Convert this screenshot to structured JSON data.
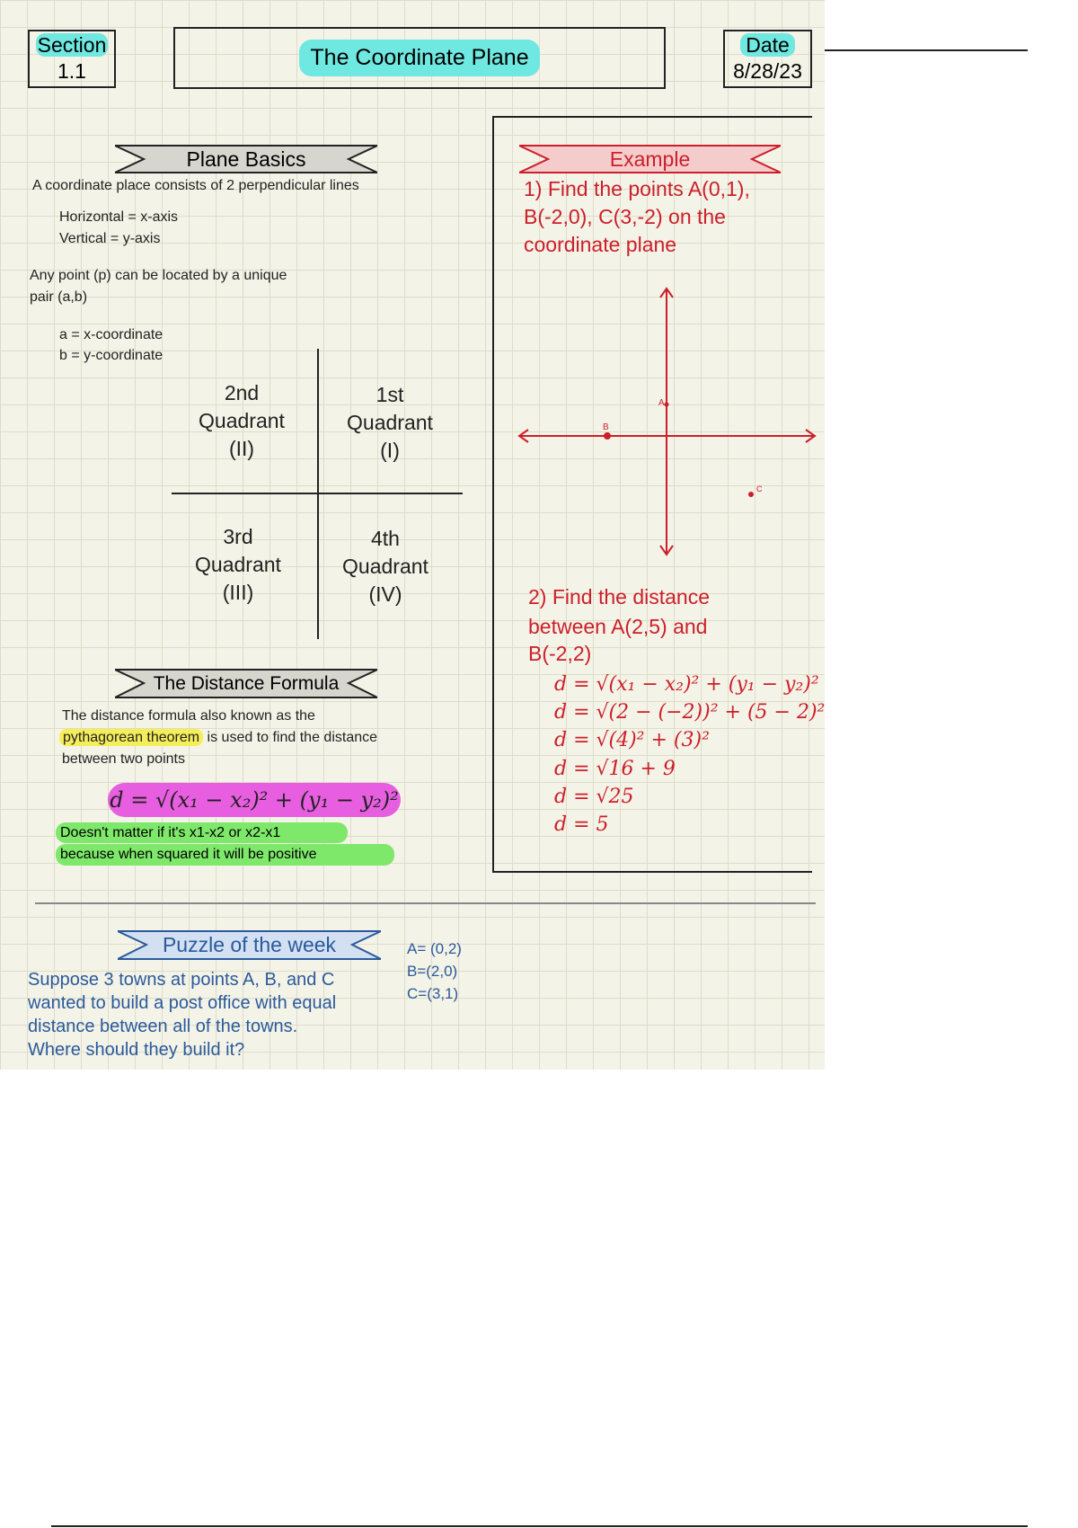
{
  "header": {
    "section_label": "Section",
    "section_number": "1.1",
    "title": "The Coordinate Plane",
    "date_label": "Date",
    "date_value": "8/28/23"
  },
  "plane_basics": {
    "banner": "Plane Basics",
    "intro": "A coordinate place consists of 2 perpendicular lines",
    "horizontal": "Horizontal = x-axis",
    "vertical": "Vertical = y-axis",
    "point_line1": "Any point (p) can be located by a unique",
    "point_line2": "pair (a,b)",
    "a_def": "a = x-coordinate",
    "b_def": "b = y-coordinate",
    "quadrants": [
      {
        "ordinal": "2nd",
        "word": "Quadrant",
        "roman": "(II)"
      },
      {
        "ordinal": "1st",
        "word": "Quadrant",
        "roman": "(I)"
      },
      {
        "ordinal": "3rd",
        "word": "Quadrant",
        "roman": "(III)"
      },
      {
        "ordinal": "4th",
        "word": "Quadrant",
        "roman": "(IV)"
      }
    ]
  },
  "distance_formula": {
    "banner": "The Distance Formula",
    "line1": "The distance formula also known as the",
    "highlight": "pythagorean theorem",
    "line2_rest": " is used to find the distance",
    "line3": "between two points",
    "formula": "d = √(x₁ − x₂)² + (y₁ − y₂)²",
    "note1": "Doesn't matter if it's x1-x2 or x2-x1",
    "note2": "because when squared it will be positive"
  },
  "example": {
    "banner": "Example",
    "q1_line1": "1) Find the points A(0,1),",
    "q1_line2": "B(-2,0), C(3,-2) on the",
    "q1_line3": "coordinate plane",
    "point_labels": {
      "a": "A",
      "b": "B",
      "c": "C"
    },
    "q2_line1": "2) Find the distance",
    "q2_line2": "between A(2,5) and",
    "q2_line3": "B(-2,2)",
    "steps": [
      "d = √(x₁ − x₂)² + (y₁ − y₂)²",
      "d = √(2 − (−2))² + (5 − 2)²",
      "d = √(4)² + (3)²",
      "d = √16 + 9",
      "d = √25",
      "d = 5"
    ]
  },
  "puzzle": {
    "banner": "Puzzle of the week",
    "lines": [
      "Suppose 3 towns at points A, B, and C",
      "wanted to build a post office with equal",
      "distance between all of the towns.",
      "Where should they build it?"
    ],
    "points": [
      "A= (0,2)",
      "B=(2,0)",
      "C=(3,1)"
    ]
  },
  "colors": {
    "red": "#cc1f2a",
    "blue": "#2a5a9c",
    "cyan": "#6ee8e0",
    "pink": "#e85ee0",
    "green": "#7ee86a",
    "yellow": "#f4ee5a"
  }
}
